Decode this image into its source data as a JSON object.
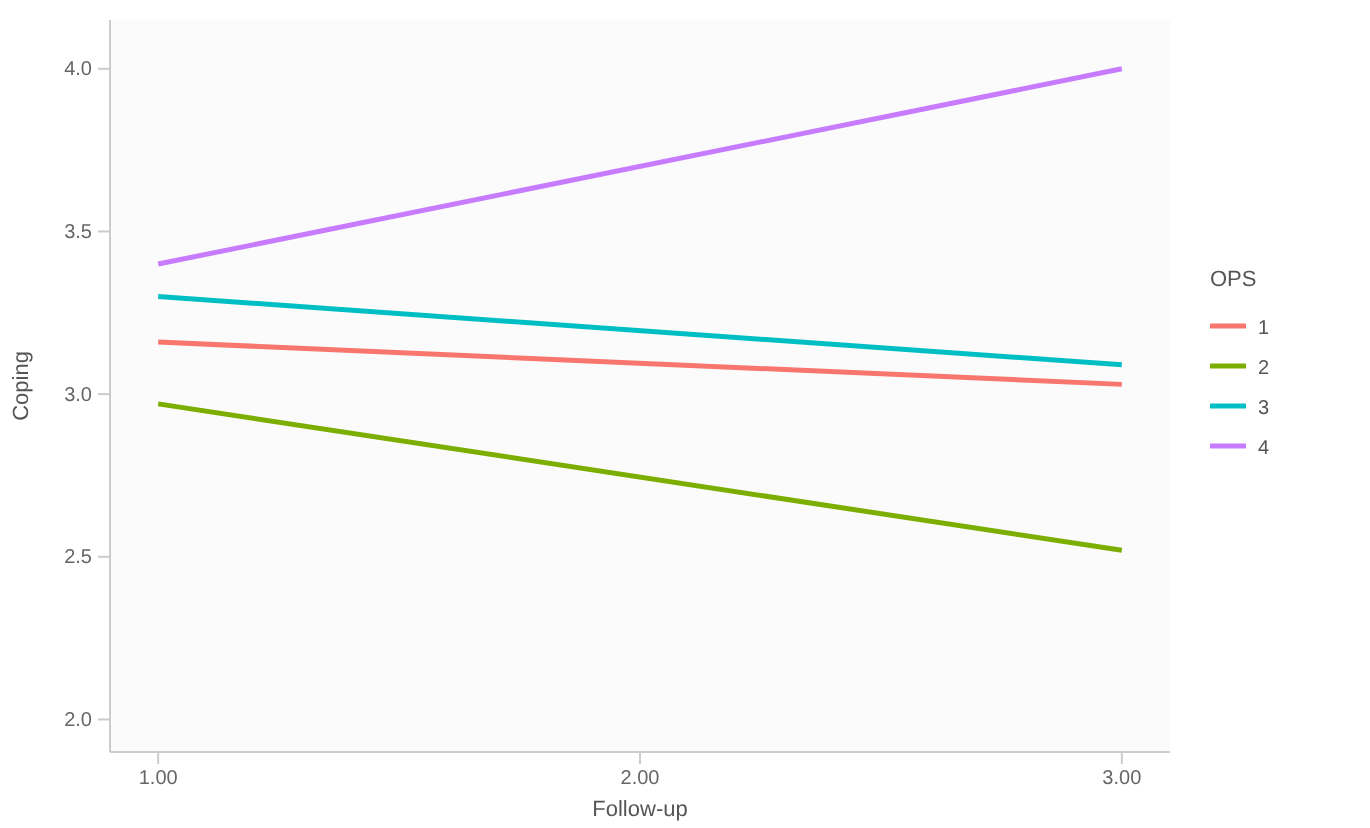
{
  "chart_data": {
    "type": "line",
    "xlabel": "Follow-up",
    "ylabel": "Coping",
    "legend_title": "OPS",
    "legend": "right",
    "x": [
      1,
      3
    ],
    "xlim": [
      0.9,
      3.1
    ],
    "xticks": [
      {
        "value": 1,
        "label": "1.00"
      },
      {
        "value": 2,
        "label": "2.00"
      },
      {
        "value": 3,
        "label": "3.00"
      }
    ],
    "ylim": [
      1.9,
      4.15
    ],
    "yticks": [
      {
        "value": 2,
        "label": "2.0"
      },
      {
        "value": 2.5,
        "label": "2.5"
      },
      {
        "value": 3,
        "label": "3.0"
      },
      {
        "value": 3.5,
        "label": "3.5"
      },
      {
        "value": 4,
        "label": "4.0"
      }
    ],
    "series": [
      {
        "name": "1",
        "color": "#f8766d",
        "values": [
          3.16,
          3.03
        ]
      },
      {
        "name": "2",
        "color": "#7cae00",
        "values": [
          2.97,
          2.52
        ]
      },
      {
        "name": "3",
        "color": "#00bfc4",
        "values": [
          3.3,
          3.09
        ]
      },
      {
        "name": "4",
        "color": "#c77cff",
        "values": [
          3.4,
          4.0
        ]
      }
    ]
  }
}
